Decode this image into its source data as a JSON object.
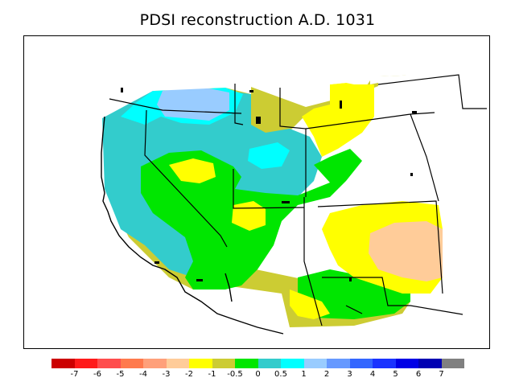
{
  "title": "PDSI reconstruction A.D. 1031",
  "legend": {
    "colors": [
      "#cc0000",
      "#ff1a1a",
      "#ff4d4d",
      "#ff7a4d",
      "#ffa07a",
      "#ffcc99",
      "#ffff00",
      "#cccc33",
      "#00e600",
      "#33cccc",
      "#00ffff",
      "#99ccff",
      "#6699ff",
      "#3366ff",
      "#1a33ff",
      "#0000e6",
      "#0000b3",
      "#808080"
    ],
    "labels": [
      "-7",
      "-6",
      "-5",
      "-4",
      "-3",
      "-2",
      "-1",
      "-0.5",
      "0",
      "0.5",
      "1",
      "2",
      "3",
      "4",
      "5",
      "6",
      "7"
    ]
  },
  "map": {
    "region": "western United States",
    "fill_classes": {
      "dry_moderate": "#ffcc99",
      "dry_mild": "#ffff00",
      "near_normal_dry": "#cccc33",
      "near_normal": "#00e600",
      "near_normal_wet": "#33cccc",
      "wet_mild": "#00ffff",
      "wet_moderate": "#99ccff"
    }
  }
}
